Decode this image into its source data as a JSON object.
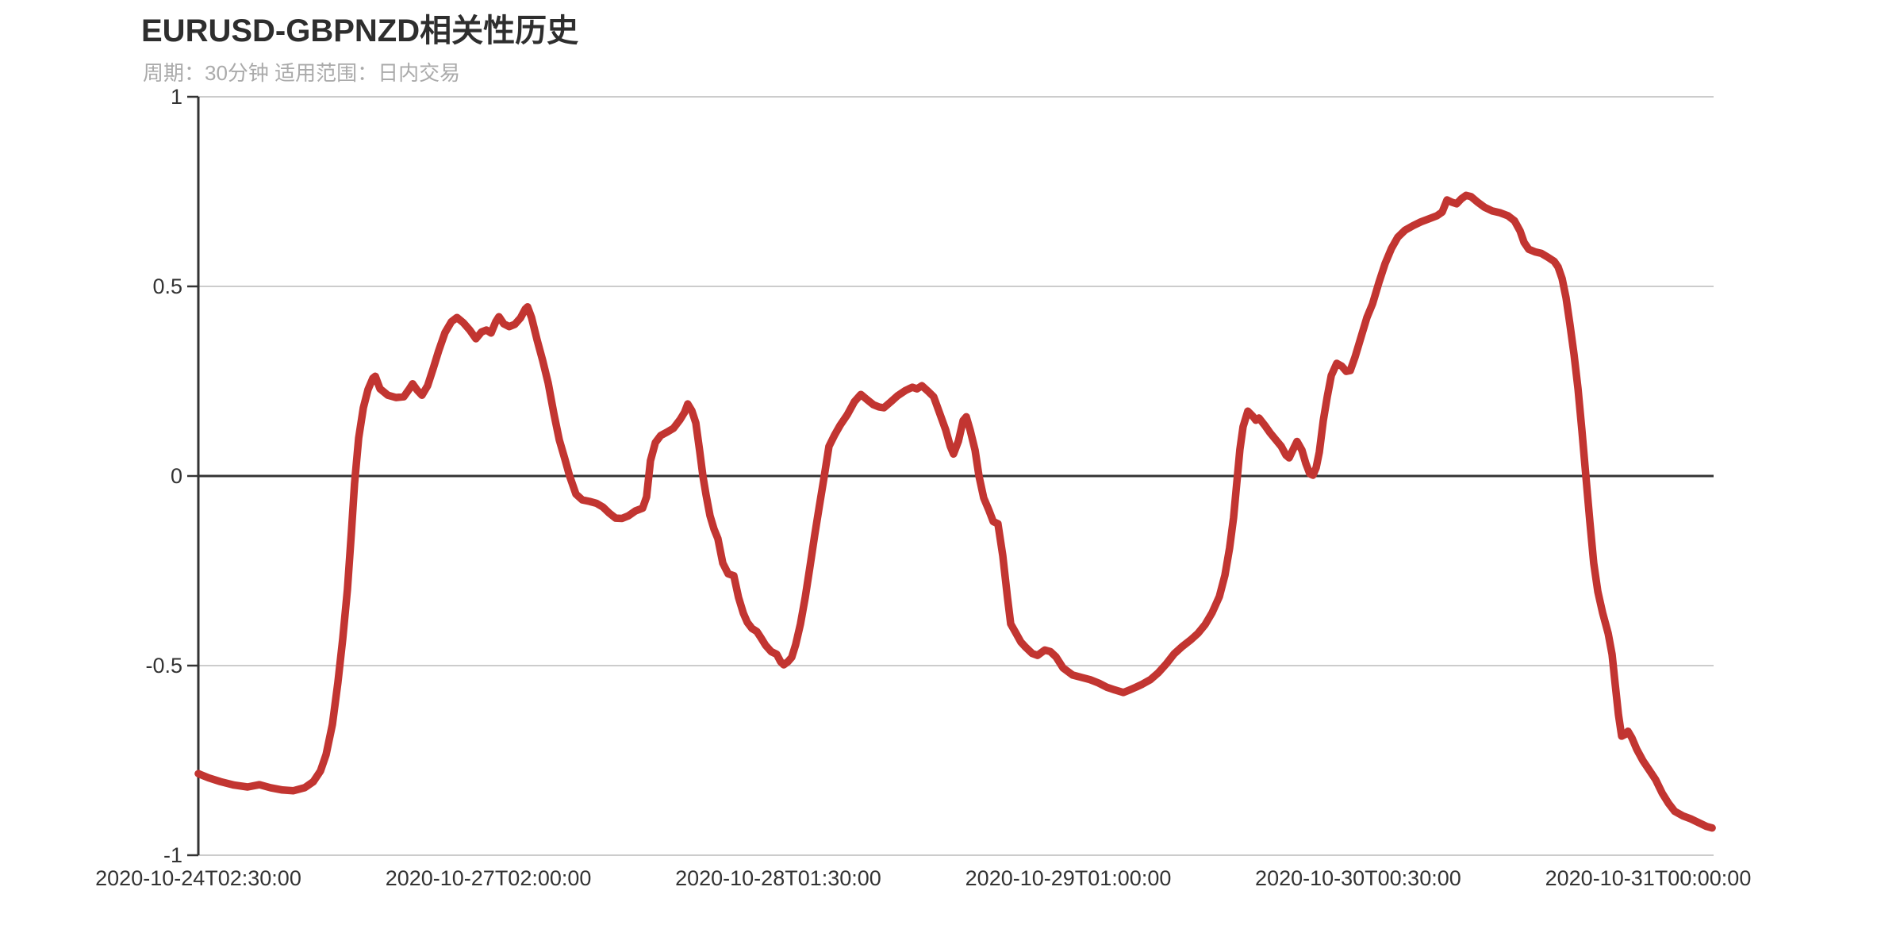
{
  "header": {
    "title": "EURUSD-GBPNZD相关性历史",
    "subtitle": "周期：30分钟 适用范围：日内交易"
  },
  "colors": {
    "line": "#c23531",
    "grid": "#cccccc",
    "axis": "#333333",
    "text": "#333333",
    "title": "#2e2e2e",
    "subtitle": "#aaaaaa",
    "background": "#ffffff"
  },
  "chart_data": {
    "type": "line",
    "title": "EURUSD-GBPNZD相关性历史",
    "subtitle": "周期：30分钟 适用范围：日内交易",
    "series_name": "EURUSD-GBPNZD相关性",
    "xlabel": "",
    "ylabel": "",
    "ylim": [
      -1,
      1
    ],
    "grid": true,
    "legend_position": "none",
    "y_ticks": [
      {
        "value": 1,
        "label": "1"
      },
      {
        "value": 0.5,
        "label": "0.5"
      },
      {
        "value": 0,
        "label": "0"
      },
      {
        "value": -0.5,
        "label": "-0.5"
      },
      {
        "value": -1,
        "label": "-1"
      }
    ],
    "x_tick_labels": [
      "2020-10-24T02:30:00",
      "2020-10-27T02:00:00",
      "2020-10-28T01:30:00",
      "2020-10-29T01:00:00",
      "2020-10-30T00:30:00",
      "2020-10-31T00:00:00"
    ],
    "x_tick_positions": [
      0.0,
      0.1914,
      0.3827,
      0.5741,
      0.7654,
      0.9568
    ],
    "points": [
      [
        0.0,
        -0.785
      ],
      [
        0.0068,
        -0.796
      ],
      [
        0.0147,
        -0.806
      ],
      [
        0.0236,
        -0.815
      ],
      [
        0.0325,
        -0.82
      ],
      [
        0.0403,
        -0.814
      ],
      [
        0.0476,
        -0.822
      ],
      [
        0.0555,
        -0.828
      ],
      [
        0.0628,
        -0.83
      ],
      [
        0.0702,
        -0.822
      ],
      [
        0.0759,
        -0.806
      ],
      [
        0.0806,
        -0.778
      ],
      [
        0.0843,
        -0.735
      ],
      [
        0.0885,
        -0.655
      ],
      [
        0.0921,
        -0.545
      ],
      [
        0.0953,
        -0.43
      ],
      [
        0.0984,
        -0.3
      ],
      [
        0.101,
        -0.15
      ],
      [
        0.1031,
        -0.02
      ],
      [
        0.1058,
        0.1
      ],
      [
        0.1089,
        0.18
      ],
      [
        0.112,
        0.228
      ],
      [
        0.1152,
        0.258
      ],
      [
        0.1168,
        0.263
      ],
      [
        0.1199,
        0.23
      ],
      [
        0.1251,
        0.213
      ],
      [
        0.1304,
        0.207
      ],
      [
        0.1356,
        0.209
      ],
      [
        0.1393,
        0.23
      ],
      [
        0.1414,
        0.243
      ],
      [
        0.1445,
        0.226
      ],
      [
        0.1476,
        0.213
      ],
      [
        0.1513,
        0.238
      ],
      [
        0.155,
        0.283
      ],
      [
        0.1586,
        0.33
      ],
      [
        0.1628,
        0.378
      ],
      [
        0.167,
        0.407
      ],
      [
        0.1707,
        0.418
      ],
      [
        0.1749,
        0.404
      ],
      [
        0.1791,
        0.385
      ],
      [
        0.1832,
        0.362
      ],
      [
        0.1869,
        0.38
      ],
      [
        0.1901,
        0.385
      ],
      [
        0.1932,
        0.377
      ],
      [
        0.1963,
        0.407
      ],
      [
        0.1984,
        0.42
      ],
      [
        0.2016,
        0.401
      ],
      [
        0.2052,
        0.394
      ],
      [
        0.2089,
        0.4
      ],
      [
        0.2126,
        0.417
      ],
      [
        0.2157,
        0.44
      ],
      [
        0.2173,
        0.446
      ],
      [
        0.2199,
        0.418
      ],
      [
        0.2236,
        0.358
      ],
      [
        0.2272,
        0.305
      ],
      [
        0.2309,
        0.245
      ],
      [
        0.2346,
        0.165
      ],
      [
        0.2382,
        0.095
      ],
      [
        0.2419,
        0.045
      ],
      [
        0.245,
        0.0
      ],
      [
        0.2492,
        -0.048
      ],
      [
        0.2534,
        -0.063
      ],
      [
        0.2581,
        -0.067
      ],
      [
        0.2628,
        -0.072
      ],
      [
        0.267,
        -0.082
      ],
      [
        0.2712,
        -0.098
      ],
      [
        0.2754,
        -0.111
      ],
      [
        0.2796,
        -0.112
      ],
      [
        0.2838,
        -0.105
      ],
      [
        0.2885,
        -0.092
      ],
      [
        0.2932,
        -0.085
      ],
      [
        0.2958,
        -0.055
      ],
      [
        0.2984,
        0.04
      ],
      [
        0.3016,
        0.088
      ],
      [
        0.3052,
        0.107
      ],
      [
        0.3094,
        0.116
      ],
      [
        0.3136,
        0.126
      ],
      [
        0.3178,
        0.148
      ],
      [
        0.3209,
        0.168
      ],
      [
        0.323,
        0.19
      ],
      [
        0.3257,
        0.172
      ],
      [
        0.3283,
        0.14
      ],
      [
        0.3309,
        0.065
      ],
      [
        0.333,
        0.0
      ],
      [
        0.3351,
        -0.05
      ],
      [
        0.3377,
        -0.105
      ],
      [
        0.3403,
        -0.14
      ],
      [
        0.3429,
        -0.165
      ],
      [
        0.3461,
        -0.23
      ],
      [
        0.3497,
        -0.258
      ],
      [
        0.3534,
        -0.263
      ],
      [
        0.3565,
        -0.32
      ],
      [
        0.3597,
        -0.362
      ],
      [
        0.3623,
        -0.386
      ],
      [
        0.3654,
        -0.402
      ],
      [
        0.3686,
        -0.41
      ],
      [
        0.3712,
        -0.426
      ],
      [
        0.3743,
        -0.446
      ],
      [
        0.378,
        -0.463
      ],
      [
        0.3817,
        -0.47
      ],
      [
        0.3843,
        -0.49
      ],
      [
        0.3864,
        -0.498
      ],
      [
        0.389,
        -0.49
      ],
      [
        0.3916,
        -0.478
      ],
      [
        0.3942,
        -0.445
      ],
      [
        0.3974,
        -0.39
      ],
      [
        0.4005,
        -0.32
      ],
      [
        0.4036,
        -0.24
      ],
      [
        0.4068,
        -0.155
      ],
      [
        0.4099,
        -0.078
      ],
      [
        0.4131,
        0.0
      ],
      [
        0.4162,
        0.078
      ],
      [
        0.4199,
        0.108
      ],
      [
        0.4236,
        0.134
      ],
      [
        0.4283,
        0.162
      ],
      [
        0.433,
        0.196
      ],
      [
        0.4372,
        0.215
      ],
      [
        0.4414,
        0.201
      ],
      [
        0.4455,
        0.188
      ],
      [
        0.4492,
        0.182
      ],
      [
        0.4524,
        0.18
      ],
      [
        0.4571,
        0.196
      ],
      [
        0.4613,
        0.211
      ],
      [
        0.4665,
        0.225
      ],
      [
        0.4712,
        0.234
      ],
      [
        0.4743,
        0.23
      ],
      [
        0.4775,
        0.238
      ],
      [
        0.4817,
        0.223
      ],
      [
        0.4853,
        0.209
      ],
      [
        0.4895,
        0.163
      ],
      [
        0.4932,
        0.122
      ],
      [
        0.4963,
        0.078
      ],
      [
        0.4984,
        0.058
      ],
      [
        0.5016,
        0.092
      ],
      [
        0.5047,
        0.146
      ],
      [
        0.5068,
        0.156
      ],
      [
        0.5094,
        0.12
      ],
      [
        0.5126,
        0.068
      ],
      [
        0.5152,
        0.0
      ],
      [
        0.5183,
        -0.058
      ],
      [
        0.5215,
        -0.088
      ],
      [
        0.5246,
        -0.12
      ],
      [
        0.5277,
        -0.126
      ],
      [
        0.5309,
        -0.21
      ],
      [
        0.534,
        -0.32
      ],
      [
        0.5361,
        -0.39
      ],
      [
        0.5398,
        -0.416
      ],
      [
        0.5429,
        -0.438
      ],
      [
        0.5461,
        -0.452
      ],
      [
        0.5503,
        -0.468
      ],
      [
        0.5539,
        -0.473
      ],
      [
        0.5586,
        -0.459
      ],
      [
        0.5623,
        -0.463
      ],
      [
        0.566,
        -0.477
      ],
      [
        0.5707,
        -0.506
      ],
      [
        0.577,
        -0.525
      ],
      [
        0.5827,
        -0.531
      ],
      [
        0.5885,
        -0.537
      ],
      [
        0.5942,
        -0.546
      ],
      [
        0.5995,
        -0.557
      ],
      [
        0.6047,
        -0.564
      ],
      [
        0.6105,
        -0.571
      ],
      [
        0.6147,
        -0.564
      ],
      [
        0.6188,
        -0.557
      ],
      [
        0.623,
        -0.549
      ],
      [
        0.6283,
        -0.537
      ],
      [
        0.6335,
        -0.519
      ],
      [
        0.6387,
        -0.496
      ],
      [
        0.644,
        -0.469
      ],
      [
        0.6492,
        -0.45
      ],
      [
        0.655,
        -0.432
      ],
      [
        0.6597,
        -0.415
      ],
      [
        0.6644,
        -0.392
      ],
      [
        0.6691,
        -0.36
      ],
      [
        0.6738,
        -0.318
      ],
      [
        0.6775,
        -0.262
      ],
      [
        0.6806,
        -0.19
      ],
      [
        0.6832,
        -0.11
      ],
      [
        0.6853,
        -0.02
      ],
      [
        0.6874,
        0.07
      ],
      [
        0.6895,
        0.13
      ],
      [
        0.6926,
        0.171
      ],
      [
        0.6958,
        0.158
      ],
      [
        0.6979,
        0.147
      ],
      [
        0.7,
        0.153
      ],
      [
        0.7037,
        0.134
      ],
      [
        0.7073,
        0.114
      ],
      [
        0.711,
        0.096
      ],
      [
        0.7147,
        0.078
      ],
      [
        0.7178,
        0.055
      ],
      [
        0.7199,
        0.048
      ],
      [
        0.7225,
        0.07
      ],
      [
        0.7251,
        0.091
      ],
      [
        0.7283,
        0.068
      ],
      [
        0.7309,
        0.033
      ],
      [
        0.7335,
        0.006
      ],
      [
        0.7356,
        0.002
      ],
      [
        0.7377,
        0.022
      ],
      [
        0.7398,
        0.063
      ],
      [
        0.7424,
        0.146
      ],
      [
        0.745,
        0.209
      ],
      [
        0.7477,
        0.265
      ],
      [
        0.7513,
        0.297
      ],
      [
        0.7545,
        0.29
      ],
      [
        0.7576,
        0.276
      ],
      [
        0.7602,
        0.278
      ],
      [
        0.7634,
        0.314
      ],
      [
        0.7681,
        0.377
      ],
      [
        0.7712,
        0.418
      ],
      [
        0.7749,
        0.454
      ],
      [
        0.7791,
        0.51
      ],
      [
        0.7832,
        0.56
      ],
      [
        0.7874,
        0.6
      ],
      [
        0.7916,
        0.63
      ],
      [
        0.7963,
        0.648
      ],
      [
        0.8016,
        0.66
      ],
      [
        0.8068,
        0.67
      ],
      [
        0.812,
        0.678
      ],
      [
        0.8173,
        0.686
      ],
      [
        0.8209,
        0.696
      ],
      [
        0.8241,
        0.728
      ],
      [
        0.8272,
        0.722
      ],
      [
        0.8304,
        0.718
      ],
      [
        0.8335,
        0.731
      ],
      [
        0.8366,
        0.74
      ],
      [
        0.8398,
        0.737
      ],
      [
        0.844,
        0.723
      ],
      [
        0.8487,
        0.709
      ],
      [
        0.8539,
        0.699
      ],
      [
        0.8592,
        0.694
      ],
      [
        0.8644,
        0.686
      ],
      [
        0.8686,
        0.673
      ],
      [
        0.8723,
        0.646
      ],
      [
        0.8749,
        0.616
      ],
      [
        0.878,
        0.598
      ],
      [
        0.8822,
        0.591
      ],
      [
        0.8864,
        0.587
      ],
      [
        0.8906,
        0.577
      ],
      [
        0.8948,
        0.566
      ],
      [
        0.8974,
        0.551
      ],
      [
        0.9,
        0.521
      ],
      [
        0.9026,
        0.47
      ],
      [
        0.9052,
        0.4
      ],
      [
        0.9079,
        0.32
      ],
      [
        0.9105,
        0.23
      ],
      [
        0.9131,
        0.12
      ],
      [
        0.9157,
        0.0
      ],
      [
        0.9183,
        -0.12
      ],
      [
        0.9209,
        -0.23
      ],
      [
        0.9236,
        -0.305
      ],
      [
        0.9267,
        -0.36
      ],
      [
        0.9304,
        -0.415
      ],
      [
        0.933,
        -0.47
      ],
      [
        0.9351,
        -0.55
      ],
      [
        0.9372,
        -0.63
      ],
      [
        0.9393,
        -0.686
      ],
      [
        0.9414,
        -0.682
      ],
      [
        0.9435,
        -0.673
      ],
      [
        0.9461,
        -0.691
      ],
      [
        0.9492,
        -0.72
      ],
      [
        0.9534,
        -0.751
      ],
      [
        0.9576,
        -0.776
      ],
      [
        0.9618,
        -0.801
      ],
      [
        0.966,
        -0.836
      ],
      [
        0.9702,
        -0.863
      ],
      [
        0.9743,
        -0.884
      ],
      [
        0.9796,
        -0.896
      ],
      [
        0.9848,
        -0.904
      ],
      [
        0.9901,
        -0.914
      ],
      [
        0.9953,
        -0.924
      ],
      [
        0.999,
        -0.928
      ]
    ]
  }
}
